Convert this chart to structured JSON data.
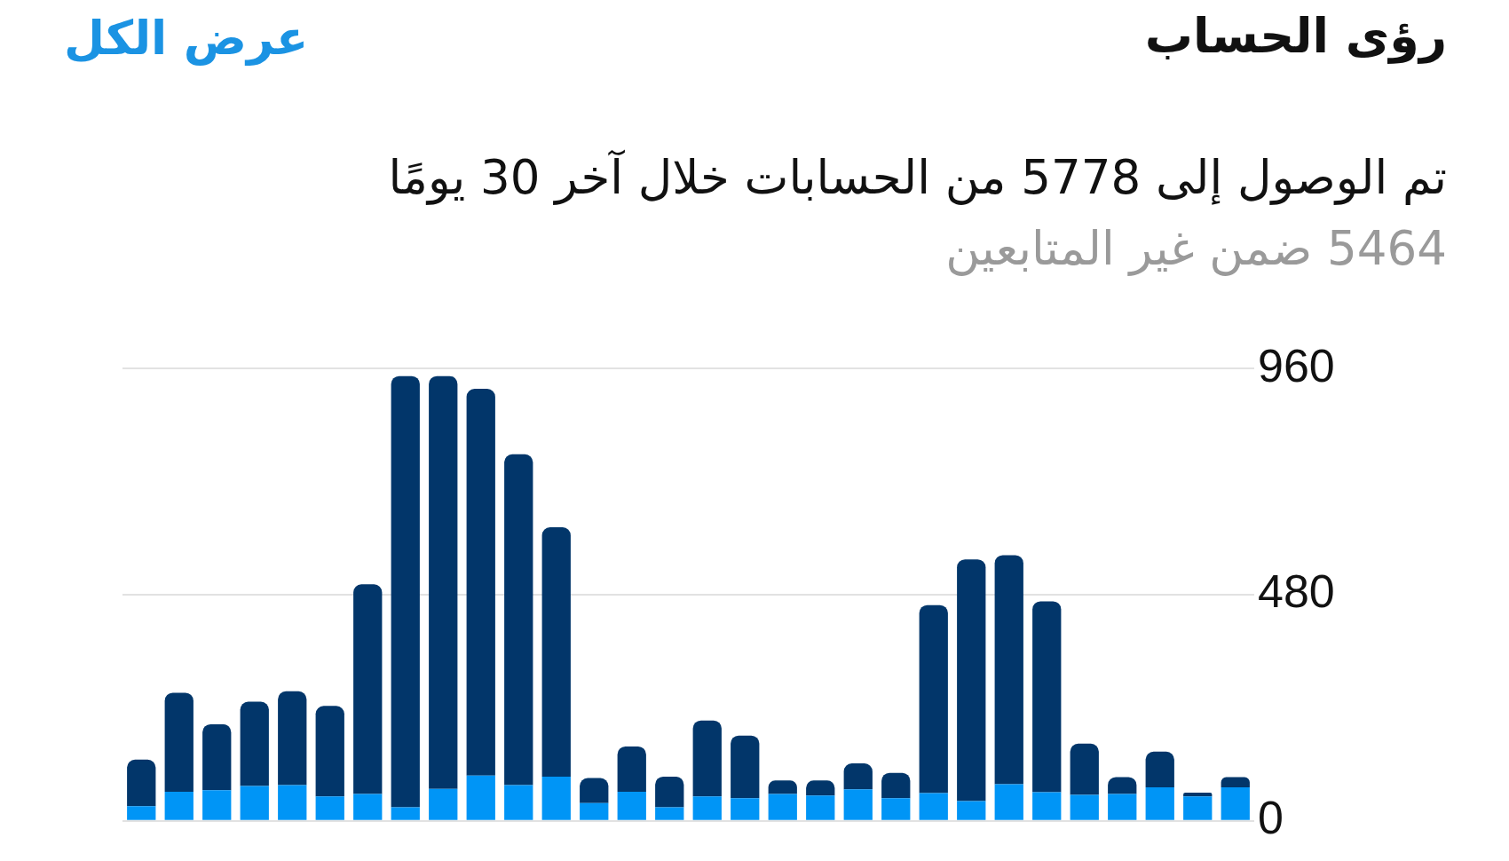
{
  "chart_data": {
    "type": "bar",
    "title": "رؤى الحساب",
    "subtitle": "تم الوصول إلى 5778 من الحسابات خلال آخر 30 يومًا",
    "annotations": [
      "5464 ضمن غير المتابعين",
      "عرض الكل"
    ],
    "categories": [
      null,
      null,
      null,
      null,
      null,
      null,
      null,
      null,
      null,
      null,
      null,
      null,
      null,
      null,
      null,
      null,
      null,
      null,
      null,
      null,
      null,
      null,
      null,
      null,
      null,
      null,
      null,
      null,
      null,
      null
    ],
    "series": [
      {
        "color": "#0095f6",
        "values": [
          31,
          62,
          65,
          74,
          76,
          52,
          57,
          29,
          68,
          96,
          76,
          94,
          38,
          62,
          29,
          52,
          48,
          57,
          54,
          67,
          48,
          59,
          42,
          78,
          61,
          55,
          57,
          71,
          52,
          71
        ]
      },
      {
        "color": "#02366a",
        "values": [
          99,
          210,
          140,
          179,
          199,
          192,
          445,
          915,
          876,
          821,
          702,
          529,
          53,
          96,
          65,
          161,
          133,
          29,
          32,
          55,
          54,
          399,
          513,
          486,
          405,
          109,
          36,
          76,
          8,
          22
        ]
      }
    ],
    "stacked": true,
    "ylim": [
      0,
      960
    ],
    "yticks": [
      0,
      480,
      960
    ],
    "grid": "y",
    "tick_labels": "y"
  }
}
